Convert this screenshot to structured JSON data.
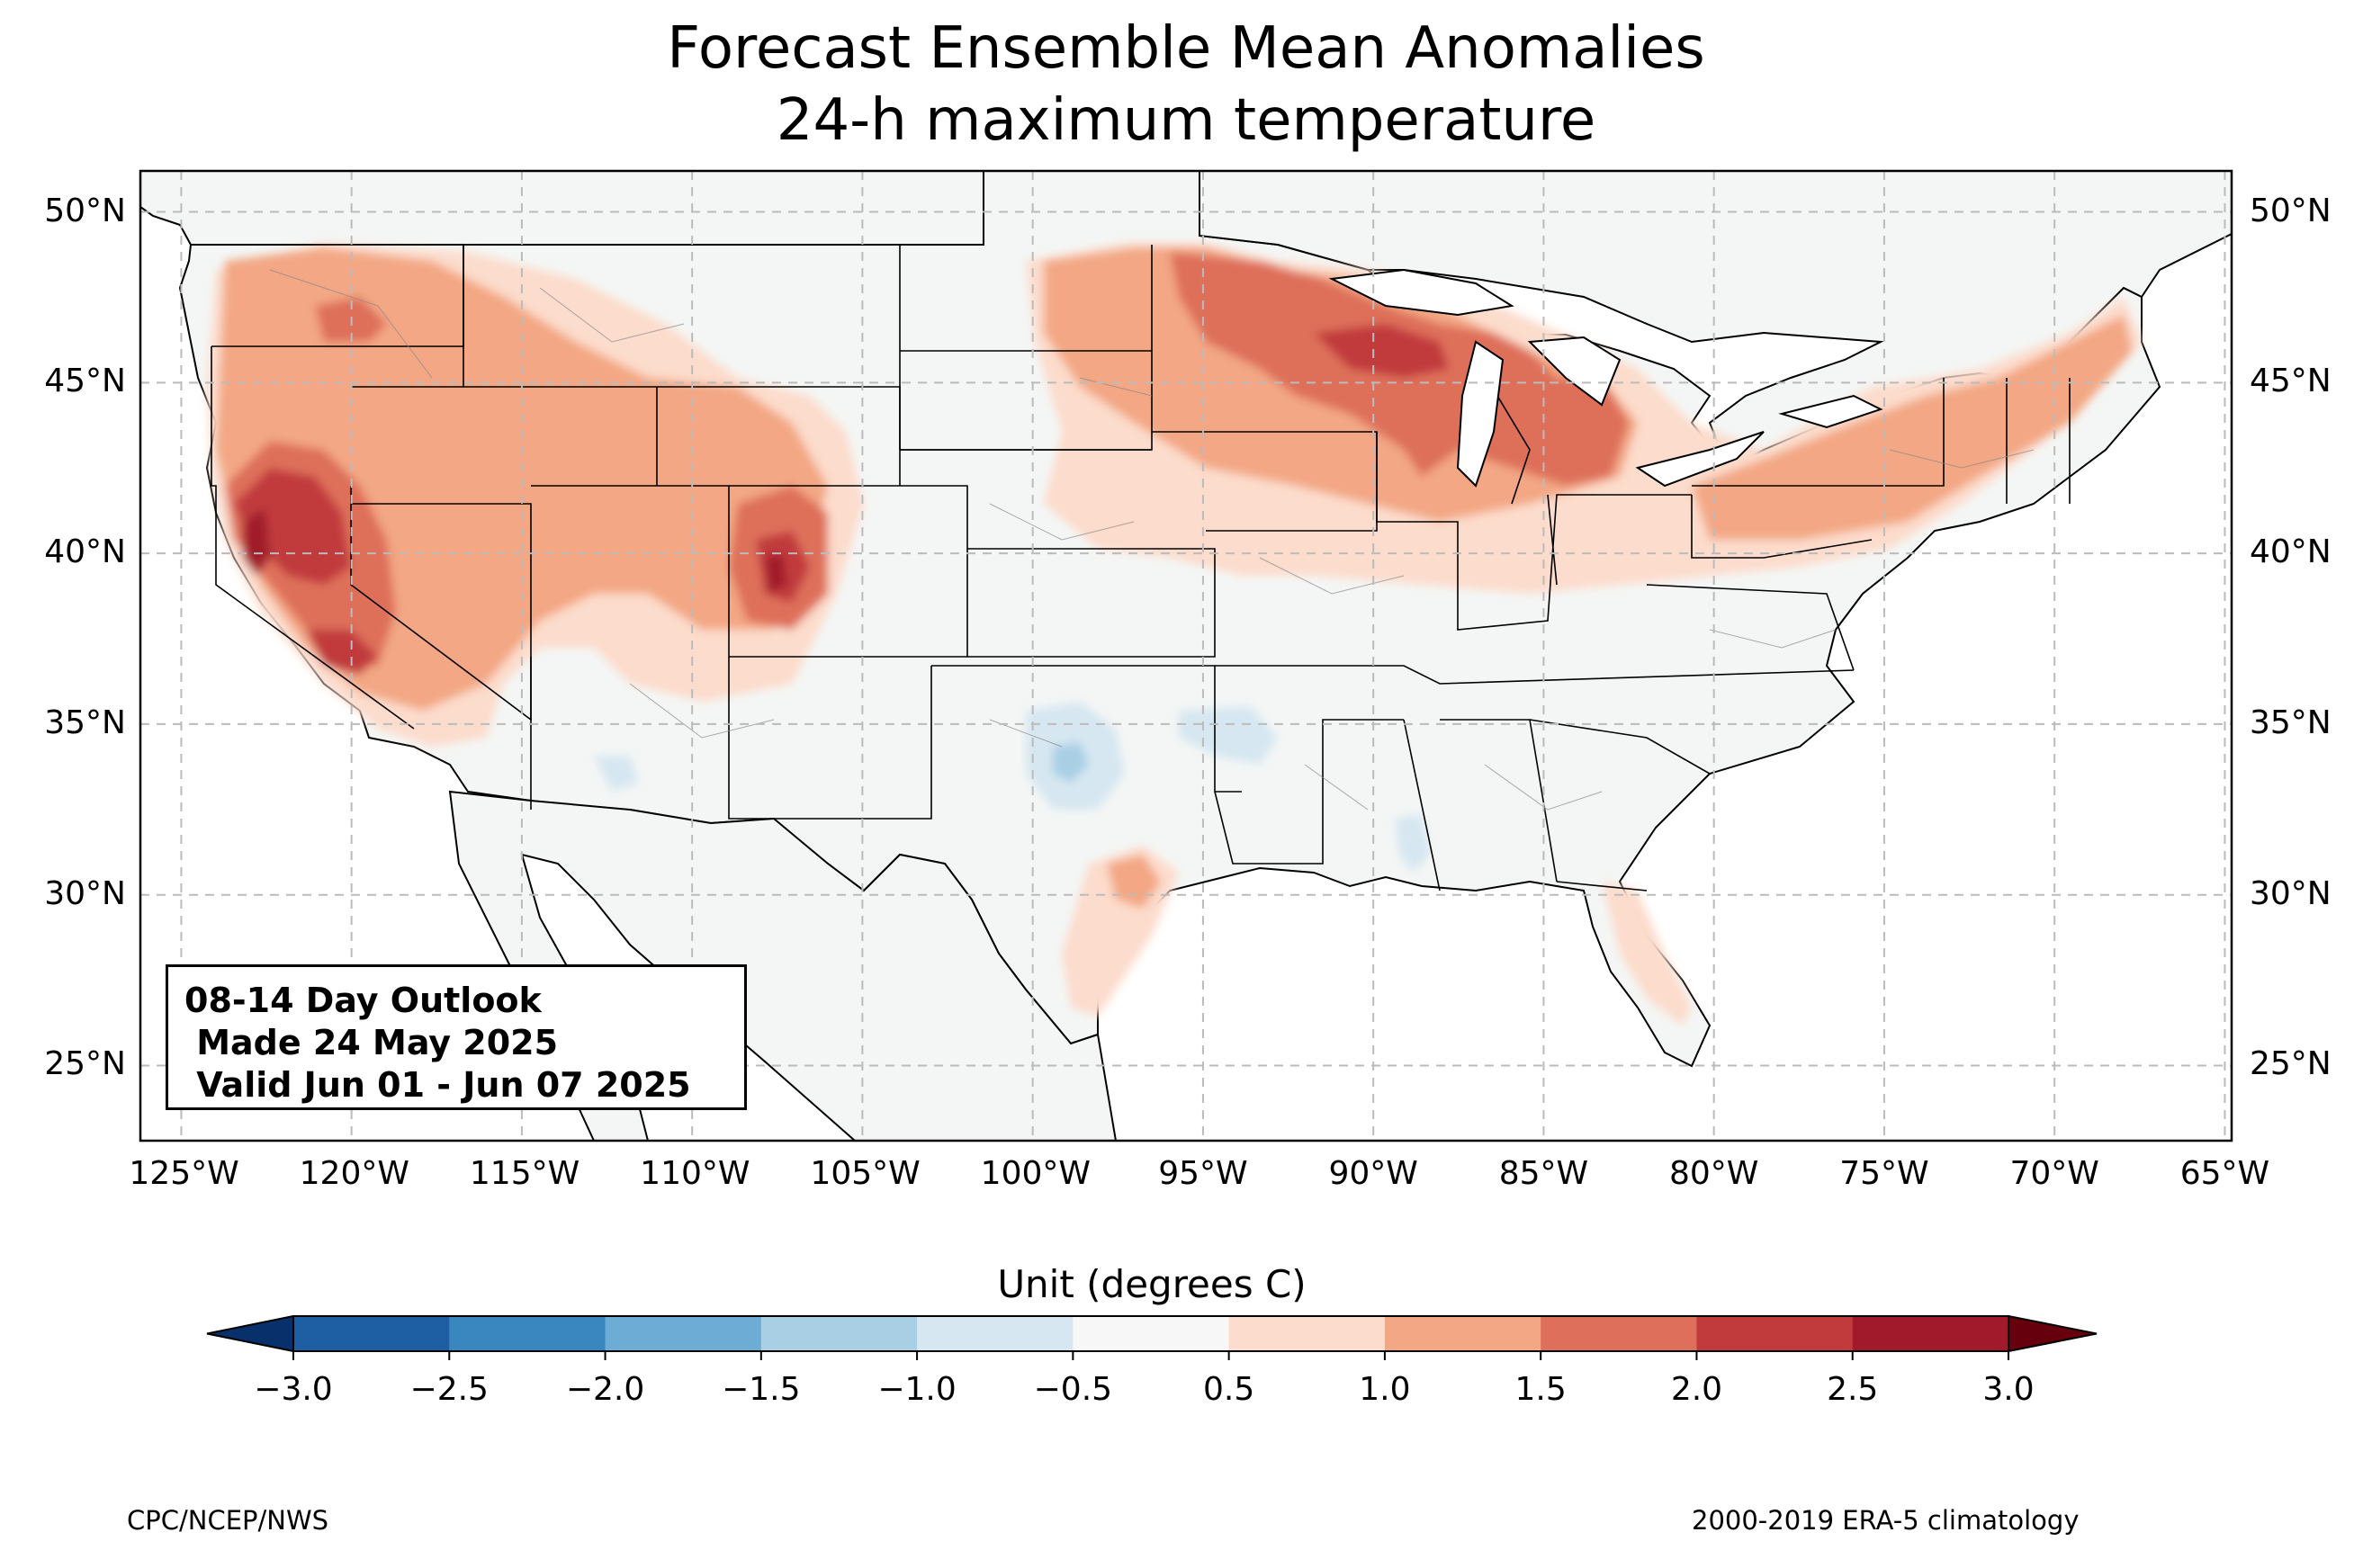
{
  "title": {
    "line1": "Forecast Ensemble Mean Anomalies",
    "line2": "24-h maximum temperature"
  },
  "map": {
    "lon_labels": [
      "125°W",
      "120°W",
      "115°W",
      "110°W",
      "105°W",
      "100°W",
      "95°W",
      "90°W",
      "85°W",
      "80°W",
      "75°W",
      "70°W",
      "65°W"
    ],
    "lat_labels": [
      "50°N",
      "45°N",
      "40°N",
      "35°N",
      "30°N",
      "25°N"
    ],
    "extent": {
      "lon": [
        -126.2,
        -64.8
      ],
      "lat": [
        22.8,
        51.2
      ]
    },
    "gridlines": "dashed grey at 5° intervals",
    "anomaly_regions": [
      {
        "area": "Northern California / Nevada",
        "anomaly_c": "2.5 to 3.0"
      },
      {
        "area": "Southern Nevada",
        "anomaly_c": "2.0 to 2.5"
      },
      {
        "area": "Western Colorado",
        "anomaly_c": "2.0 to 3.0"
      },
      {
        "area": "Wisconsin / Upper Michigan",
        "anomaly_c": "2.0 to 2.5"
      },
      {
        "area": "Michigan lower peninsula",
        "anomaly_c": "1.5 to 2.0"
      },
      {
        "area": "Minnesota",
        "anomaly_c": "1.5 to 2.0"
      },
      {
        "area": "Pacific Northwest and Intermountain West",
        "anomaly_c": "1.0 to 2.0"
      },
      {
        "area": "Northeast / Pennsylvania / New York",
        "anomaly_c": "1.0 to 1.5"
      },
      {
        "area": "South Texas",
        "anomaly_c": "1.0 to 1.5"
      },
      {
        "area": "Oklahoma",
        "anomaly_c": "-1.0 to -0.5"
      },
      {
        "area": "Mississippi",
        "anomaly_c": "-1.0 to -0.5"
      }
    ]
  },
  "outlook_box": {
    "line1": "08-14 Day Outlook",
    "line2": " Made 24 May 2025",
    "line3": " Valid Jun 01 - Jun 07 2025"
  },
  "colorbar": {
    "label": "Unit (degrees C)",
    "ticks": [
      "−3.0",
      "−2.5",
      "−2.0",
      "−1.5",
      "−1.0",
      "−0.5",
      "0.5",
      "1.0",
      "1.5",
      "2.0",
      "2.5",
      "3.0"
    ],
    "colors": [
      "#08306b",
      "#1d5fa2",
      "#3a87c0",
      "#6cacd5",
      "#a9cfe5",
      "#d6e7f1",
      "#f7f7f7",
      "#fcdccc",
      "#f3a784",
      "#de6f5a",
      "#c13b3c",
      "#a11a2b",
      "#67000d"
    ]
  },
  "footer": {
    "left": "CPC/NCEP/NWS",
    "right": "2000-2019 ERA-5 climatology"
  }
}
